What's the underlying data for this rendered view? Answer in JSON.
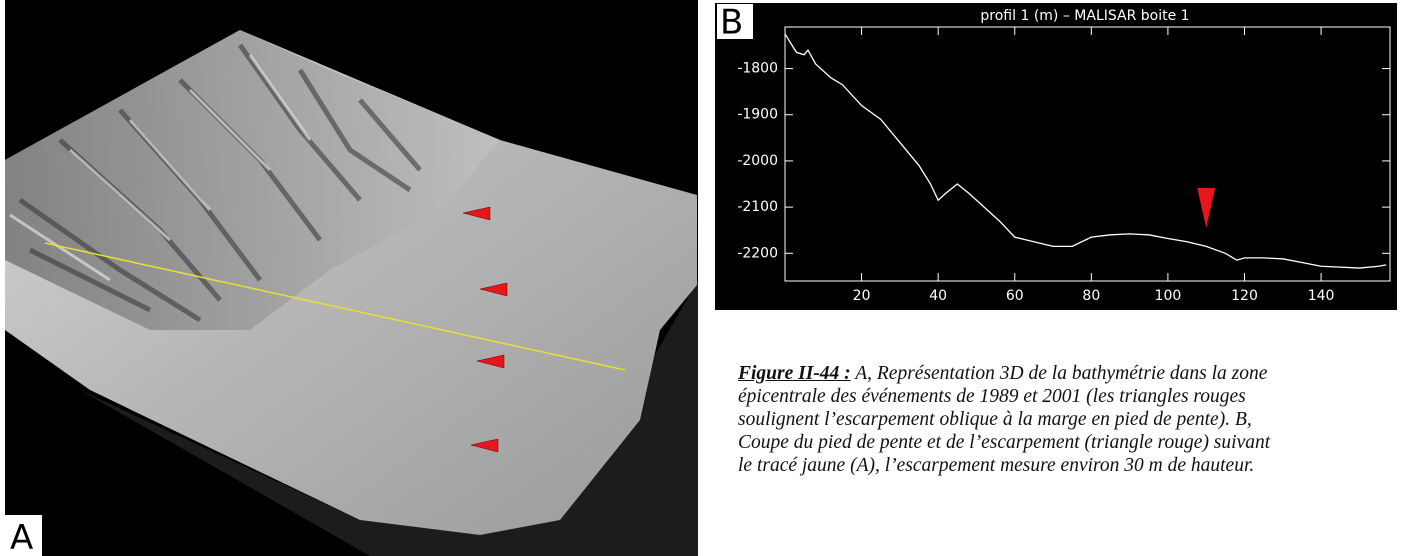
{
  "panel_a": {
    "label": "A"
  },
  "panel_b": {
    "label": "B"
  },
  "chart_data": {
    "type": "line",
    "title": "profil 1 (m) – MALISAR boite 1",
    "x": [
      0,
      3,
      5,
      6,
      8,
      12,
      15,
      20,
      25,
      30,
      35,
      38,
      40,
      42,
      45,
      48,
      52,
      56,
      60,
      65,
      70,
      75,
      80,
      85,
      90,
      95,
      100,
      105,
      110,
      115,
      118,
      120,
      125,
      130,
      135,
      140,
      145,
      150,
      155,
      157
    ],
    "series": [
      {
        "color": "#ffffff",
        "values": [
          -1725,
          -1765,
          -1770,
          -1760,
          -1790,
          -1820,
          -1835,
          -1880,
          -1910,
          -1960,
          -2010,
          -2050,
          -2085,
          -2070,
          -2050,
          -2070,
          -2100,
          -2130,
          -2165,
          -2175,
          -2185,
          -2185,
          -2165,
          -2160,
          -2158,
          -2160,
          -2168,
          -2175,
          -2185,
          -2200,
          -2215,
          -2210,
          -2210,
          -2212,
          -2220,
          -2228,
          -2230,
          -2232,
          -2228,
          -2225
        ]
      }
    ],
    "xlim": [
      0,
      158
    ],
    "xticks": [
      20,
      40,
      60,
      80,
      100,
      120,
      140
    ],
    "ylim": [
      -2260,
      -1710
    ],
    "yticks": [
      -1800,
      -1900,
      -2000,
      -2100,
      -2200
    ],
    "markers": [
      {
        "x": 110,
        "y": -2145,
        "color": "#e8151b"
      }
    ]
  },
  "caption": {
    "label": "Figure II-44 :",
    "lines": [
      "A, Représentation 3D de la bathymétrie dans la zone",
      "épicentrale des événements de 1989 et 2001 (les triangles rouges",
      "soulignent l’escarpement oblique à la marge en pied de pente). B,",
      "Coupe du pied de pente et de l’escarpement (triangle rouge) suivant",
      "le tracé jaune (A), l’escarpement mesure environ 30 m de hauteur."
    ]
  }
}
